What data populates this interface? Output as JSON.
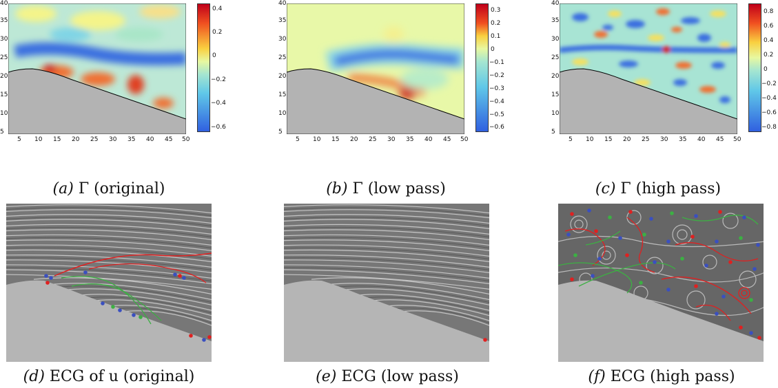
{
  "figure": {
    "panels": [
      {
        "id": "a",
        "caption_letter": "(a)",
        "caption_text": "Γ (original)",
        "colorbar_ticks": [
          "0.4",
          "0.2",
          "0",
          "−0.2",
          "−0.4",
          "−0.6"
        ]
      },
      {
        "id": "b",
        "caption_letter": "(b)",
        "caption_text": "Γ (low pass)",
        "colorbar_ticks": [
          "0.3",
          "0.2",
          "0.1",
          "0",
          "−0.1",
          "−0.2",
          "−0.3",
          "−0.4",
          "−0.5",
          "−0.6"
        ]
      },
      {
        "id": "c",
        "caption_letter": "(c)",
        "caption_text": "Γ (high pass)",
        "colorbar_ticks": [
          "0.8",
          "0.6",
          "0.4",
          "0.2",
          "0",
          "−0.2",
          "−0.4",
          "−0.6",
          "−0.8"
        ]
      },
      {
        "id": "d",
        "caption_letter": "(d)",
        "caption_text": "ECG of u (original)",
        "bold_word": "u"
      },
      {
        "id": "e",
        "caption_letter": "(e)",
        "caption_text": "ECG (low pass)"
      },
      {
        "id": "f",
        "caption_letter": "(f)",
        "caption_text": "ECG (high pass)"
      }
    ],
    "x_ticks": [
      "5",
      "10",
      "15",
      "20",
      "25",
      "30",
      "35",
      "40",
      "45",
      "50"
    ],
    "y_ticks": [
      "40",
      "35",
      "30",
      "25",
      "20",
      "15",
      "10",
      "5"
    ]
  },
  "colors": {
    "wall": "#b3b3b3",
    "red_curve": "#e02020",
    "green_curve": "#3cb043",
    "blue_dot": "#3a4fc0",
    "red_dot": "#e02020"
  }
}
